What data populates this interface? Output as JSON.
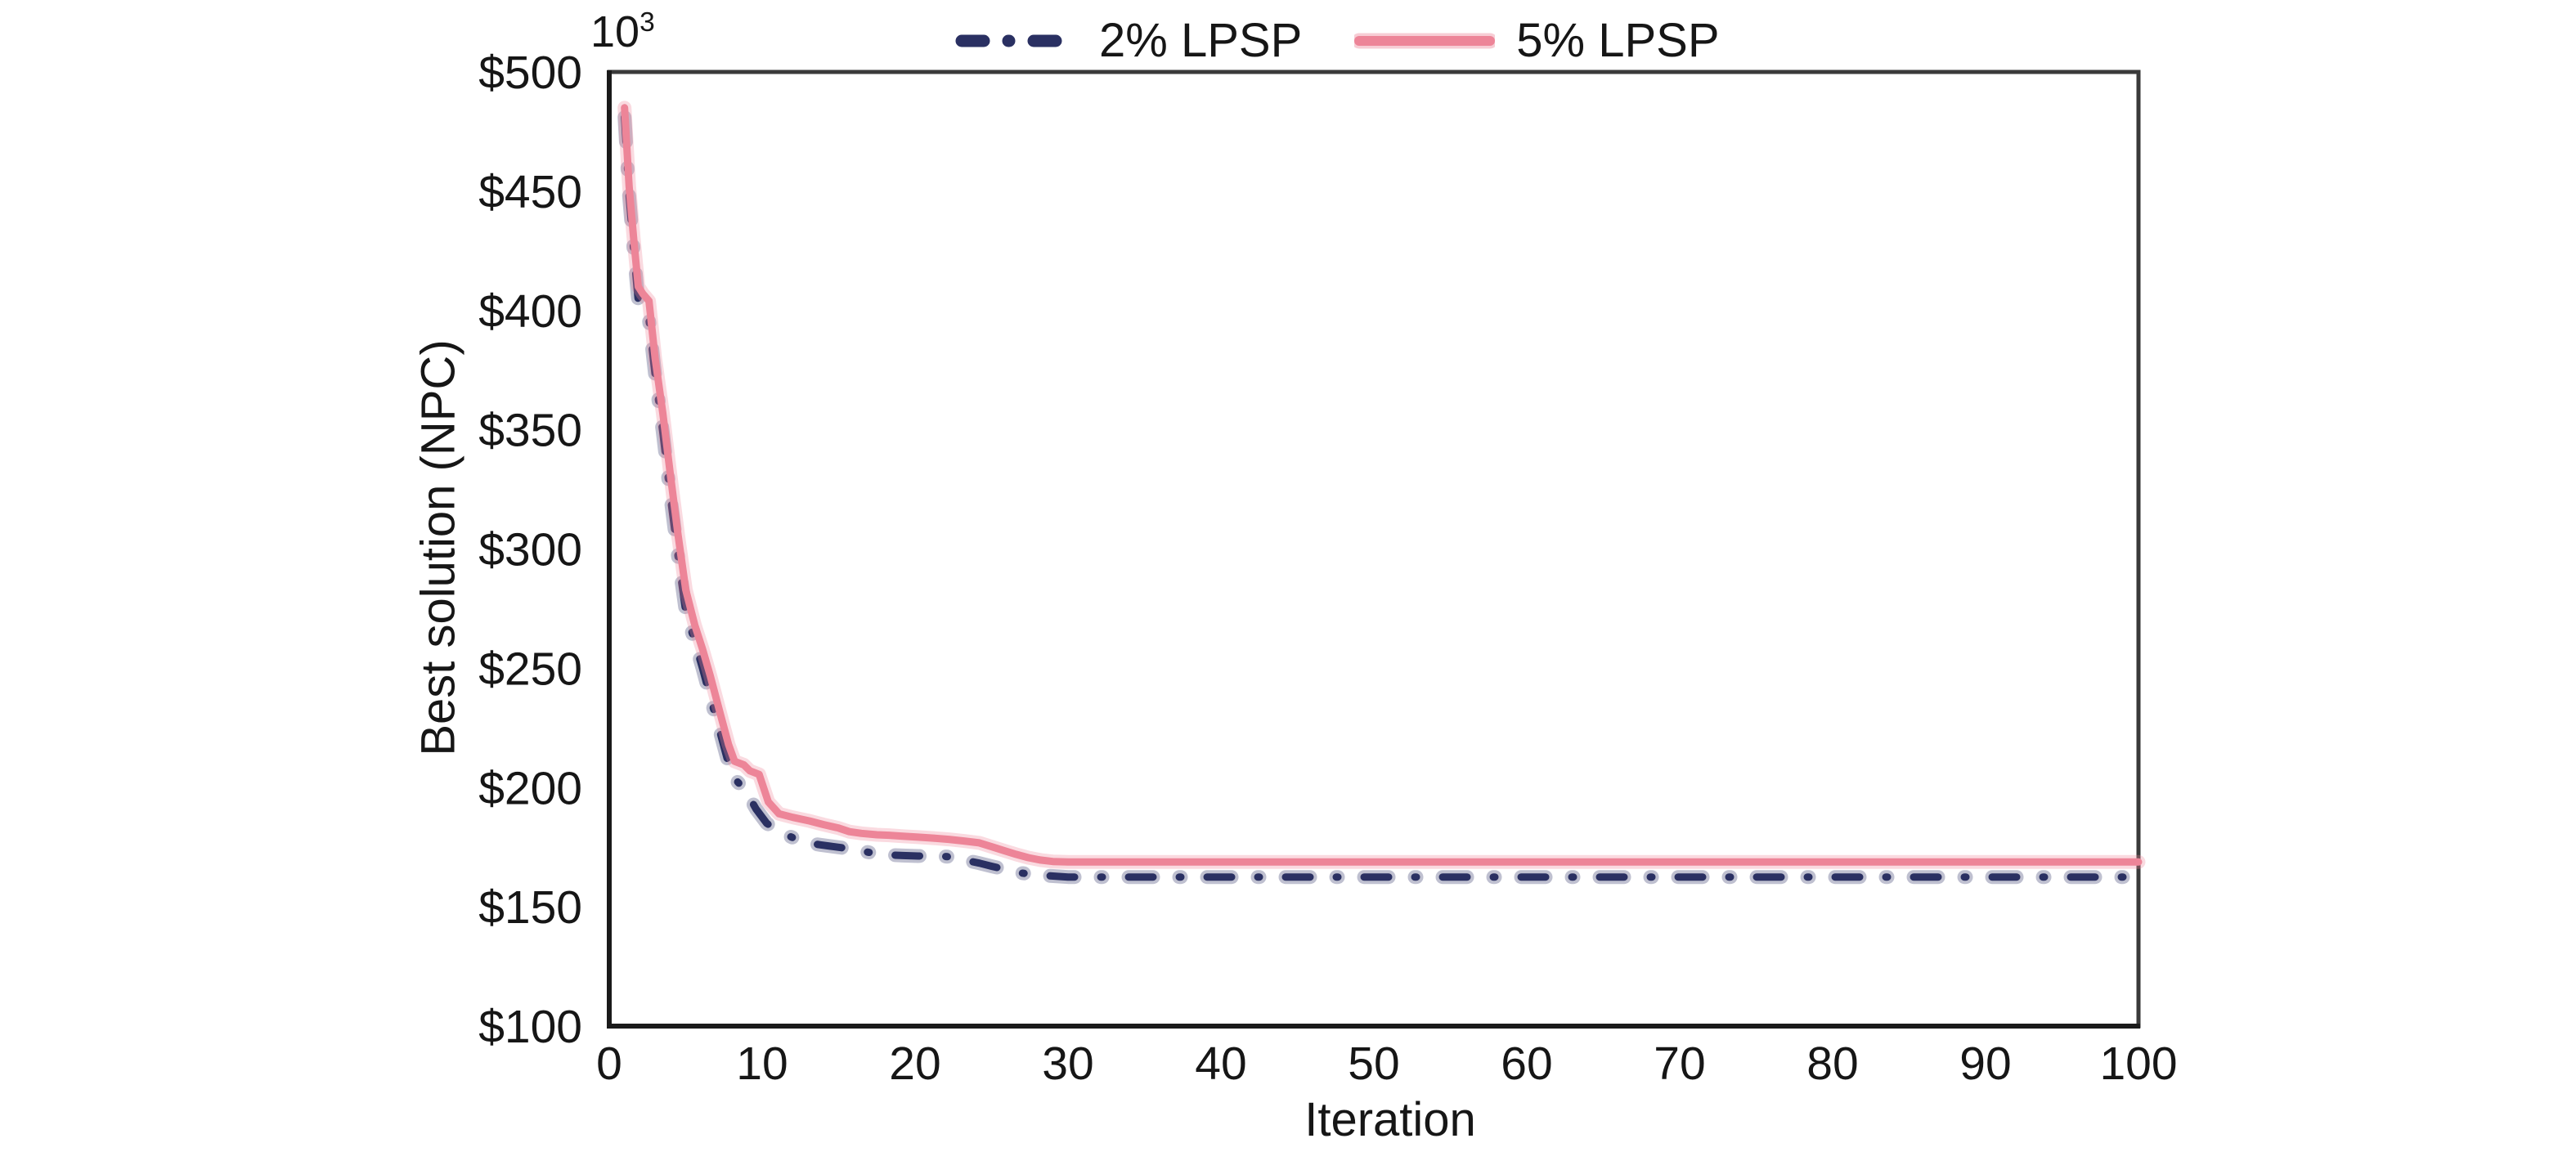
{
  "figure": {
    "background": "#ffffff",
    "y_multiplier": {
      "base": "10",
      "exp": "3"
    }
  },
  "chart_data": {
    "type": "line",
    "title": "",
    "xlabel": "Iteration",
    "ylabel": "Best solution (NPC)",
    "y_unit": "USD thousands (10^3)",
    "x_range": [
      0,
      100
    ],
    "y_range": [
      100,
      500
    ],
    "grid": false,
    "legend_position": "top-center",
    "x_ticks": [
      {
        "label": "0",
        "value": 0
      },
      {
        "label": "10",
        "value": 10
      },
      {
        "label": "20",
        "value": 20
      },
      {
        "label": "30",
        "value": 30
      },
      {
        "label": "40",
        "value": 40
      },
      {
        "label": "50",
        "value": 50
      },
      {
        "label": "60",
        "value": 60
      },
      {
        "label": "70",
        "value": 70
      },
      {
        "label": "80",
        "value": 80
      },
      {
        "label": "90",
        "value": 90
      },
      {
        "label": "100",
        "value": 100
      }
    ],
    "y_ticks": [
      {
        "label": "$500",
        "value": 500
      },
      {
        "label": "$450",
        "value": 450
      },
      {
        "label": "$400",
        "value": 400
      },
      {
        "label": "$350",
        "value": 350
      },
      {
        "label": "$300",
        "value": 300
      },
      {
        "label": "$250",
        "value": 250
      },
      {
        "label": "$200",
        "value": 200
      },
      {
        "label": "$150",
        "value": 150
      },
      {
        "label": "$100",
        "value": 100
      }
    ],
    "axis_color": "#1a1a1a",
    "box_color": "#3a3a3a",
    "series": [
      {
        "name": "2% LPSP",
        "color": "#2a3062",
        "line_style": "dash-dot",
        "converged_value_k": 162.5,
        "points": [
          [
            1,
            481
          ],
          [
            1.3,
            448
          ],
          [
            1.6,
            425
          ],
          [
            1.9,
            404
          ],
          [
            2.2,
            400
          ],
          [
            2.6,
            396
          ],
          [
            3,
            373
          ],
          [
            3.5,
            349
          ],
          [
            4,
            322
          ],
          [
            4.5,
            297
          ],
          [
            5,
            274
          ],
          [
            5.6,
            261
          ],
          [
            6.1,
            250
          ],
          [
            6.6,
            238
          ],
          [
            7.3,
            222
          ],
          [
            7.8,
            210
          ],
          [
            8.3,
            203
          ],
          [
            8.9,
            199
          ],
          [
            9.6,
            191
          ],
          [
            10.3,
            185
          ],
          [
            11.1,
            181.5
          ],
          [
            12,
            179
          ],
          [
            12.8,
            177
          ],
          [
            13.8,
            176
          ],
          [
            14.6,
            175.3
          ],
          [
            15.5,
            174.5
          ],
          [
            16.4,
            173.5
          ],
          [
            17.3,
            172.5
          ],
          [
            18.2,
            171.8
          ],
          [
            19.2,
            171.5
          ],
          [
            20.2,
            171.3
          ],
          [
            21.2,
            171.5
          ],
          [
            22.2,
            171
          ],
          [
            23.3,
            169.5
          ],
          [
            24.2,
            168.3
          ],
          [
            25,
            167
          ],
          [
            26,
            165.5
          ],
          [
            26.8,
            164.3
          ],
          [
            27.7,
            163.5
          ],
          [
            28.8,
            163
          ],
          [
            30,
            162.5
          ],
          [
            100,
            162.5
          ]
        ]
      },
      {
        "name": "5% LPSP",
        "color": "#ed8598",
        "line_style": "solid",
        "converged_value_k": 169,
        "points": [
          [
            1,
            485
          ],
          [
            1.3,
            452
          ],
          [
            1.6,
            430
          ],
          [
            1.9,
            410
          ],
          [
            2.2,
            407
          ],
          [
            2.6,
            404
          ],
          [
            3,
            380
          ],
          [
            3.5,
            357
          ],
          [
            4,
            331
          ],
          [
            4.5,
            306
          ],
          [
            5,
            283
          ],
          [
            5.6,
            268
          ],
          [
            6.1,
            258
          ],
          [
            6.6,
            247
          ],
          [
            7.3,
            230
          ],
          [
            7.8,
            218
          ],
          [
            8.2,
            211
          ],
          [
            8.8,
            209.5
          ],
          [
            9.2,
            207
          ],
          [
            9.8,
            205.5
          ],
          [
            10.4,
            194
          ],
          [
            11.1,
            189
          ],
          [
            12,
            187.5
          ],
          [
            13.1,
            186
          ],
          [
            14,
            184.5
          ],
          [
            15,
            183
          ],
          [
            15.7,
            181.5
          ],
          [
            16.5,
            180.8
          ],
          [
            17.5,
            180.2
          ],
          [
            18.3,
            180
          ],
          [
            19.2,
            179.6
          ],
          [
            20.2,
            179.2
          ],
          [
            21.2,
            178.8
          ],
          [
            22.2,
            178.3
          ],
          [
            23.2,
            177.6
          ],
          [
            24.2,
            176.8
          ],
          [
            25,
            175.2
          ],
          [
            25.8,
            173.6
          ],
          [
            26.6,
            172
          ],
          [
            27.4,
            170.6
          ],
          [
            28.2,
            169.6
          ],
          [
            29,
            169
          ],
          [
            30,
            168.8
          ],
          [
            100,
            168.8
          ]
        ]
      }
    ]
  }
}
